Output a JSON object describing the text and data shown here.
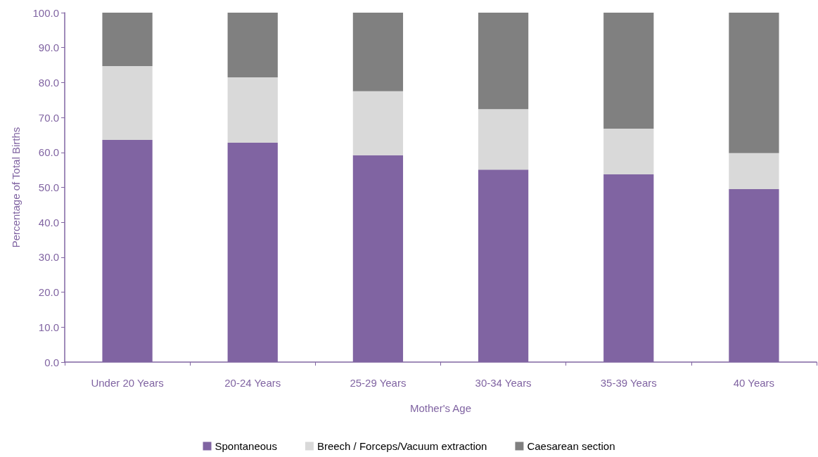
{
  "chart_data": {
    "type": "bar",
    "stacked": true,
    "xlabel": "Mother's Age",
    "ylabel": "Percentage of Total Births",
    "categories": [
      "Under 20 Years",
      "20-24 Years",
      "25-29 Years",
      "30-34 Years",
      "35-39 Years",
      "40 Years"
    ],
    "series": [
      {
        "name": "Spontaneous",
        "color": "#8064a2",
        "values": [
          63.6,
          62.8,
          59.2,
          55.1,
          53.7,
          49.5
        ]
      },
      {
        "name": "Breech / Forceps/Vacuum extraction",
        "color": "#d9d9d9",
        "values": [
          21.1,
          18.7,
          18.3,
          17.3,
          13.1,
          10.3
        ]
      },
      {
        "name": "Caesarean section",
        "color": "#808080",
        "values": [
          15.3,
          18.5,
          22.5,
          27.6,
          33.2,
          40.2
        ]
      }
    ],
    "ylim": [
      0,
      100
    ],
    "yticks": [
      {
        "value": 0,
        "label": "0.0"
      },
      {
        "value": 10,
        "label": "10.0"
      },
      {
        "value": 20,
        "label": "20.0"
      },
      {
        "value": 30,
        "label": "30.0"
      },
      {
        "value": 40,
        "label": "40.0"
      },
      {
        "value": 50,
        "label": "50.0"
      },
      {
        "value": 60,
        "label": "60.0"
      },
      {
        "value": 70,
        "label": "70.0"
      },
      {
        "value": 80,
        "label": "80.0"
      },
      {
        "value": 90,
        "label": "90.0"
      },
      {
        "value": 100,
        "label": "100.0"
      }
    ],
    "grid": false,
    "legend": "bottom"
  }
}
